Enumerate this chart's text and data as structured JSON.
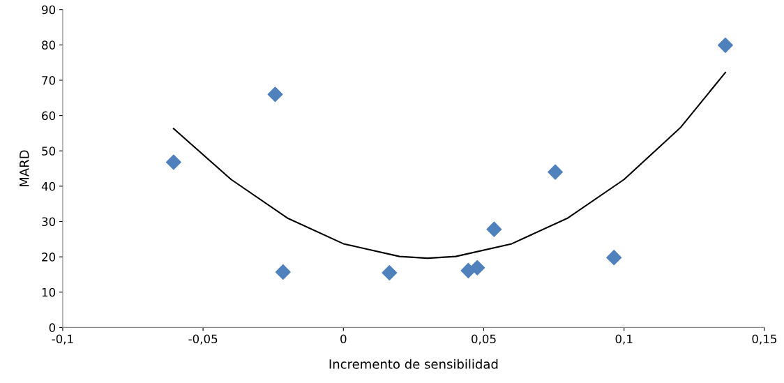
{
  "chart_data": {
    "type": "scatter",
    "xlabel": "Incremento de sensibilidad",
    "ylabel": "MARD",
    "xlim": [
      -0.1,
      0.15
    ],
    "ylim": [
      0,
      90
    ],
    "xticks": [
      {
        "value": -0.1,
        "label": "-0,1"
      },
      {
        "value": -0.05,
        "label": "-0,05"
      },
      {
        "value": 0,
        "label": "0"
      },
      {
        "value": 0.05,
        "label": "0,05"
      },
      {
        "value": 0.1,
        "label": "0,1"
      },
      {
        "value": 0.15,
        "label": "0,15"
      }
    ],
    "yticks": [
      0,
      10,
      20,
      30,
      40,
      50,
      60,
      70,
      80,
      90
    ],
    "grid": false,
    "legend": false,
    "series": [
      {
        "color": "#4f81bd",
        "marker": "diamond",
        "x": [
          -0.0605,
          -0.0243,
          -0.0215,
          0.0164,
          0.0445,
          0.0477,
          0.0537,
          0.0755,
          0.0964,
          0.1361
        ],
        "values": [
          46.8,
          66.0,
          15.7,
          15.5,
          16.1,
          16.9,
          27.8,
          44.0,
          19.8,
          79.9
        ]
      },
      {
        "type": "line",
        "color": "#000000",
        "marker": "none",
        "line_style": "solid",
        "x": [
          -0.0605,
          -0.04,
          -0.02,
          0,
          0.02,
          0.03,
          0.04,
          0.06,
          0.08,
          0.1,
          0.12,
          0.1361
        ],
        "values": [
          56.3,
          41.9,
          31.0,
          23.7,
          20.1,
          19.6,
          20.1,
          23.7,
          31.0,
          41.9,
          56.5,
          72.2
        ]
      }
    ]
  }
}
